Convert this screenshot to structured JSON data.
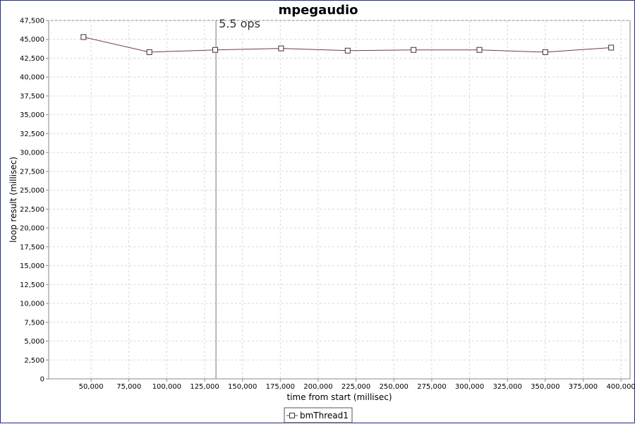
{
  "chart_data": {
    "type": "line",
    "title": "mpegaudio",
    "xlabel": "time from start (millisec)",
    "ylabel": "loop result (millisec)",
    "xlim": [
      22000,
      406000
    ],
    "ylim": [
      0,
      47500
    ],
    "x_ticks": [
      50000,
      75000,
      100000,
      125000,
      150000,
      175000,
      200000,
      225000,
      250000,
      275000,
      300000,
      325000,
      350000,
      375000,
      400000
    ],
    "x_tick_labels": [
      "50,000",
      "75,000",
      "100,000",
      "125,000",
      "150,000",
      "175,000",
      "200,000",
      "225,000",
      "250,000",
      "275,000",
      "300,000",
      "325,000",
      "350,000",
      "375,000",
      "400,000"
    ],
    "y_ticks": [
      0,
      2500,
      5000,
      7500,
      10000,
      12500,
      15000,
      17500,
      20000,
      22500,
      25000,
      27500,
      30000,
      32500,
      35000,
      37500,
      40000,
      42500,
      45000,
      47500
    ],
    "y_tick_labels": [
      "0",
      "2,500",
      "5,000",
      "7,500",
      "10,000",
      "12,500",
      "15,000",
      "17,500",
      "20,000",
      "22,500",
      "25,000",
      "27,500",
      "30,000",
      "32,500",
      "35,000",
      "37,500",
      "40,000",
      "42,500",
      "45,000",
      "47,500"
    ],
    "grid": true,
    "legend_position": "bottom-center",
    "marker_line": {
      "x": 132500,
      "label": "5.5 ops"
    },
    "series": [
      {
        "name": "bmThread1",
        "color": "#7a3b3b",
        "marker": "square",
        "x": [
          45000,
          88500,
          132000,
          175500,
          219500,
          263000,
          306500,
          350000,
          393500
        ],
        "y": [
          45300,
          43300,
          43600,
          43800,
          43500,
          43600,
          43600,
          43300,
          43900
        ]
      }
    ]
  }
}
